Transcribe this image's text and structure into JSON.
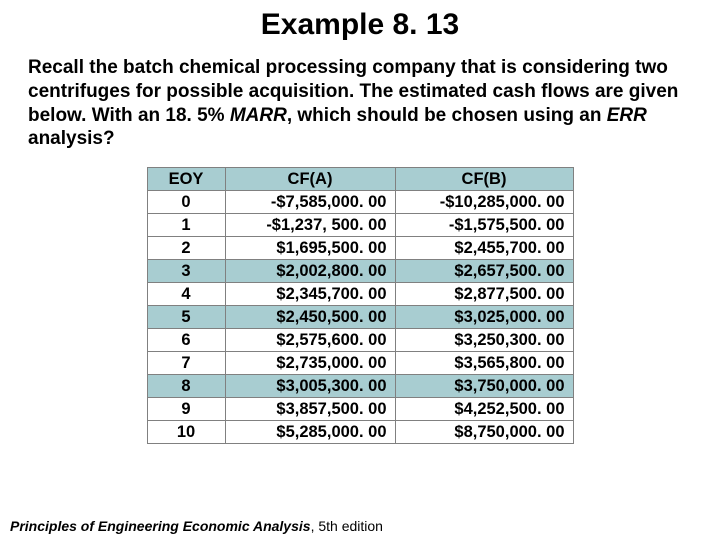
{
  "title": "Example 8. 13",
  "body": {
    "p1": "Recall the batch chemical processing company that is considering two centrifuges for possible acquisition. The estimated cash flows are given below. With an 18. 5% ",
    "marr": "MARR",
    "p2": ", which should be chosen using an ",
    "err": "ERR",
    "p3": " analysis?"
  },
  "table": {
    "headers": {
      "eoy": "EOY",
      "cfa": "CF(A)",
      "cfb": "CF(B)"
    },
    "rows": [
      {
        "eoy": "0",
        "cfa": "-$7,585,000. 00",
        "cfb": "-$10,285,000. 00"
      },
      {
        "eoy": "1",
        "cfa": "-$1,237, 500. 00",
        "cfb": "-$1,575,500. 00"
      },
      {
        "eoy": "2",
        "cfa": "$1,695,500. 00",
        "cfb": "$2,455,700. 00"
      },
      {
        "eoy": "3",
        "cfa": "$2,002,800. 00",
        "cfb": "$2,657,500. 00"
      },
      {
        "eoy": "4",
        "cfa": "$2,345,700. 00",
        "cfb": "$2,877,500. 00"
      },
      {
        "eoy": "5",
        "cfa": "$2,450,500. 00",
        "cfb": "$3,025,000. 00"
      },
      {
        "eoy": "6",
        "cfa": "$2,575,600. 00",
        "cfb": "$3,250,300. 00"
      },
      {
        "eoy": "7",
        "cfa": "$2,735,000. 00",
        "cfb": "$3,565,800. 00"
      },
      {
        "eoy": "8",
        "cfa": "$3,005,300. 00",
        "cfb": "$3,750,000. 00"
      },
      {
        "eoy": "9",
        "cfa": "$3,857,500. 00",
        "cfb": "$4,252,500. 00"
      },
      {
        "eoy": "10",
        "cfa": "$5,285,000. 00",
        "cfb": "$8,750,000. 00"
      }
    ],
    "alt_rows": [
      3,
      5,
      8
    ],
    "colors": {
      "header_bg": "#a8cdd1",
      "border": "#808080",
      "alt_bg": "#a8cdd1"
    }
  },
  "footer": {
    "book": "Principles of Engineering Economic Analysis",
    "ed": ", 5th edition"
  }
}
